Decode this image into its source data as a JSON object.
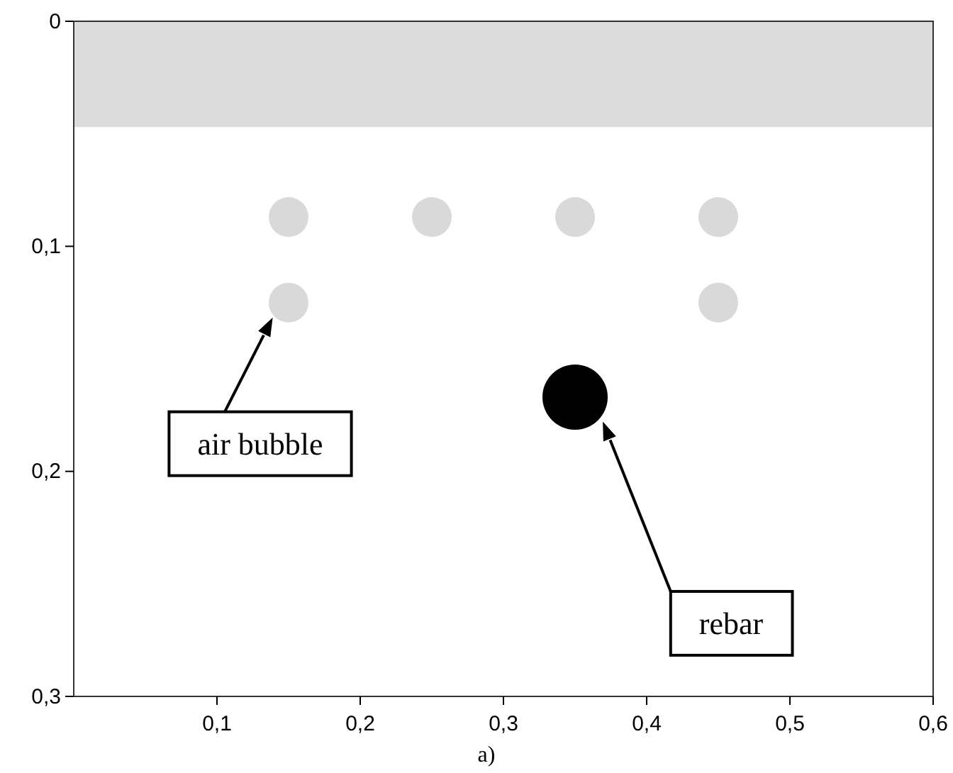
{
  "chart_data": {
    "type": "scatter",
    "marker": "circle",
    "xlim": [
      0,
      0.6
    ],
    "ylim": [
      0.3,
      0
    ],
    "xticks": [
      {
        "value": 0.1,
        "label": "0,1"
      },
      {
        "value": 0.2,
        "label": "0,2"
      },
      {
        "value": 0.3,
        "label": "0,3"
      },
      {
        "value": 0.4,
        "label": "0,4"
      },
      {
        "value": 0.5,
        "label": "0,5"
      },
      {
        "value": 0.6,
        "label": "0,6"
      }
    ],
    "yticks": [
      0,
      {
        "value": 0.1,
        "label": "0,1"
      },
      {
        "value": 0.2,
        "label": "0,2"
      },
      {
        "value": 0.3,
        "label": "0,3"
      }
    ],
    "series": [
      {
        "color": "#d9d9d9",
        "x": [
          0.15,
          0.25,
          0.35,
          0.45,
          0.15,
          0.45
        ],
        "values": [
          0.087,
          0.087,
          0.087,
          0.087,
          0.125,
          0.125
        ]
      },
      {
        "color": "#000000",
        "x": [
          0.35
        ],
        "values": [
          0.167
        ]
      }
    ],
    "bands": [
      {
        "axis": "y",
        "from": 0,
        "to": 0.047,
        "color": "#dcdcdc"
      }
    ],
    "annotations": [
      "air bubble",
      "rebar",
      "a)"
    ],
    "grid": false
  }
}
